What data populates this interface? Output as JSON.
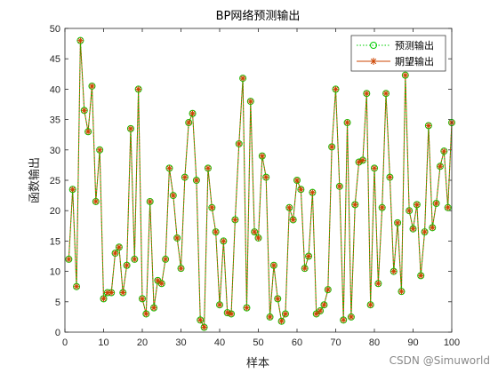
{
  "watermark": "CSDN @Simuworld",
  "chart_data": {
    "type": "line",
    "title": "BP网络预测输出",
    "xlabel": "样本",
    "ylabel": "函数输出",
    "xlim": [
      0,
      100
    ],
    "ylim": [
      0,
      50
    ],
    "xticks": [
      0,
      10,
      20,
      30,
      40,
      50,
      60,
      70,
      80,
      90,
      100
    ],
    "yticks": [
      0,
      5,
      10,
      15,
      20,
      25,
      30,
      35,
      40,
      45,
      50
    ],
    "grid": false,
    "legend_position": "top-right",
    "series": [
      {
        "name": "预测输出",
        "color": "#00cc00",
        "line_style": "dotted",
        "marker": "circle",
        "x": [
          1,
          2,
          3,
          4,
          5,
          6,
          7,
          8,
          9,
          10,
          11,
          12,
          13,
          14,
          15,
          16,
          17,
          18,
          19,
          20,
          21,
          22,
          23,
          24,
          25,
          26,
          27,
          28,
          29,
          30,
          31,
          32,
          33,
          34,
          35,
          36,
          37,
          38,
          39,
          40,
          41,
          42,
          43,
          44,
          45,
          46,
          47,
          48,
          49,
          50,
          51,
          52,
          53,
          54,
          55,
          56,
          57,
          58,
          59,
          60,
          61,
          62,
          63,
          64,
          65,
          66,
          67,
          68,
          69,
          70,
          71,
          72,
          73,
          74,
          75,
          76,
          77,
          78,
          79,
          80,
          81,
          82,
          83,
          84,
          85,
          86,
          87,
          88,
          89,
          90,
          91,
          92,
          93,
          94,
          95,
          96,
          97,
          98,
          99,
          100
        ],
        "values": [
          12,
          23.5,
          7.5,
          48,
          36.5,
          33,
          40.5,
          21.5,
          30,
          5.5,
          6.5,
          6.5,
          13,
          14,
          6.5,
          11,
          33.5,
          12,
          40,
          5.5,
          3,
          21.5,
          4,
          8.5,
          8,
          12,
          27,
          22.5,
          15.5,
          10.5,
          25.5,
          34.5,
          36,
          25,
          2,
          0.8,
          27,
          20.5,
          16.5,
          4.5,
          15,
          3.2,
          3,
          18.5,
          31,
          41.8,
          4,
          38,
          16.5,
          15.5,
          29,
          25.5,
          2.5,
          11,
          5.5,
          1.8,
          3,
          20.5,
          18.5,
          25,
          23.5,
          10.5,
          12.5,
          23,
          3,
          3.5,
          4.5,
          7,
          30.5,
          40,
          24,
          2,
          34.5,
          2.5,
          21,
          28,
          28.3,
          39.3,
          4.5,
          27,
          8,
          20.5,
          39.3,
          25.5,
          10,
          18,
          6.7,
          42.3,
          20,
          17,
          21,
          9.3,
          16.5,
          34,
          17.2,
          21.2,
          27.3,
          29.8,
          20.5,
          34.5
        ]
      },
      {
        "name": "期望输出",
        "color": "#cc4400",
        "line_style": "solid",
        "marker": "asterisk",
        "x": [
          1,
          2,
          3,
          4,
          5,
          6,
          7,
          8,
          9,
          10,
          11,
          12,
          13,
          14,
          15,
          16,
          17,
          18,
          19,
          20,
          21,
          22,
          23,
          24,
          25,
          26,
          27,
          28,
          29,
          30,
          31,
          32,
          33,
          34,
          35,
          36,
          37,
          38,
          39,
          40,
          41,
          42,
          43,
          44,
          45,
          46,
          47,
          48,
          49,
          50,
          51,
          52,
          53,
          54,
          55,
          56,
          57,
          58,
          59,
          60,
          61,
          62,
          63,
          64,
          65,
          66,
          67,
          68,
          69,
          70,
          71,
          72,
          73,
          74,
          75,
          76,
          77,
          78,
          79,
          80,
          81,
          82,
          83,
          84,
          85,
          86,
          87,
          88,
          89,
          90,
          91,
          92,
          93,
          94,
          95,
          96,
          97,
          98,
          99,
          100
        ],
        "values": [
          12,
          23.5,
          7.5,
          48,
          36.5,
          33,
          40.5,
          21.5,
          30,
          5.5,
          6.5,
          6.5,
          13,
          14,
          6.5,
          11,
          33.5,
          12,
          40,
          5.5,
          3,
          21.5,
          4,
          8.5,
          8,
          12,
          27,
          22.5,
          15.5,
          10.5,
          25.5,
          34.5,
          36,
          25,
          2,
          0.8,
          27,
          20.5,
          16.5,
          4.5,
          15,
          3.2,
          3,
          18.5,
          31,
          41.8,
          4,
          38,
          16.5,
          15.5,
          29,
          25.5,
          2.5,
          11,
          5.5,
          1.8,
          3,
          20.5,
          18.5,
          25,
          23.5,
          10.5,
          12.5,
          23,
          3,
          3.5,
          4.5,
          7,
          30.5,
          40,
          24,
          2,
          34.5,
          2.5,
          21,
          28,
          28.3,
          39.3,
          4.5,
          27,
          8,
          20.5,
          39.3,
          25.5,
          10,
          18,
          6.7,
          42.3,
          20,
          17,
          21,
          9.3,
          16.5,
          34,
          17.2,
          21.2,
          27.3,
          29.8,
          20.5,
          34.5
        ]
      }
    ]
  }
}
